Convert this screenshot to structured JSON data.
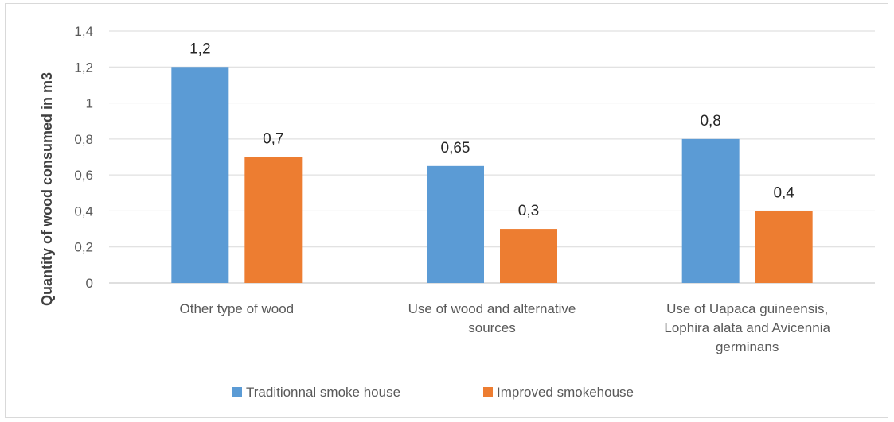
{
  "chart_data": {
    "type": "bar",
    "title": "",
    "xlabel": "",
    "ylabel": "Quantity of wood consumed in m3",
    "categories": [
      [
        "Other type of wood"
      ],
      [
        "Use of wood and alternative",
        "sources"
      ],
      [
        "Use of Uapaca guineensis,",
        "Lophira alata and Avicennia",
        "germinans"
      ]
    ],
    "series": [
      {
        "name": "Traditionnal smoke house",
        "values": [
          1.2,
          0.65,
          0.8
        ],
        "labels": [
          "1,2",
          "0,65",
          "0,8"
        ],
        "color": "#5b9bd5"
      },
      {
        "name": "Improved smokehouse",
        "values": [
          0.7,
          0.3,
          0.4
        ],
        "labels": [
          "0,7",
          "0,3",
          "0,4"
        ],
        "color": "#ed7d31"
      }
    ],
    "ylim": [
      0,
      1.4
    ],
    "yticks": [
      "0",
      "0,2",
      "0,4",
      "0,6",
      "0,8",
      "1",
      "1,2",
      "1,4"
    ],
    "grid": true,
    "legend_position": "bottom"
  }
}
